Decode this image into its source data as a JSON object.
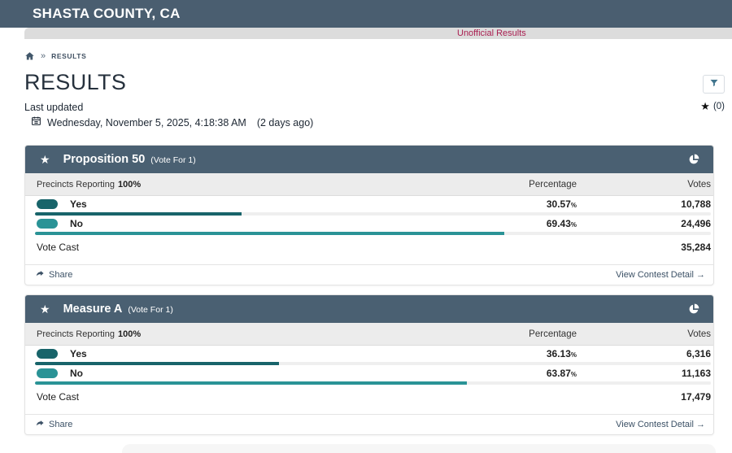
{
  "app": {
    "title": "SHASTA COUNTY, CA",
    "banner": "Unofficial Results"
  },
  "breadcrumb": {
    "separator": "»",
    "current": "RESULTS"
  },
  "page": {
    "title": "RESULTS",
    "last_updated_label": "Last updated",
    "last_updated_value": "Wednesday, November 5, 2025, 4:18:38 AM",
    "last_updated_ago": "(2 days ago)",
    "favorites_star": "★",
    "favorites_count": "(0)"
  },
  "labels": {
    "percentage_header": "Percentage",
    "votes_header": "Votes",
    "precincts_reporting": "Precincts Reporting",
    "vote_cast": "Vote Cast",
    "share": "Share",
    "view_contest_detail": "View Contest Detail →",
    "percent_symbol": "%",
    "header_star": "★"
  },
  "colors": {
    "header_slate": "#4a5e70",
    "card_header_slate": "#4a6072",
    "unofficial_red": "#a91e50",
    "yes_teal": "#18646a",
    "no_teal": "#2a9396",
    "bar_track": "#efefef",
    "link_slate": "#3c5166"
  },
  "contests": [
    {
      "title": "Proposition 50",
      "vote_for": "(Vote For 1)",
      "precincts_reporting": "100%",
      "vote_cast": "35,284",
      "choices": [
        {
          "label": "Yes",
          "percentage": "30.57",
          "bar_pct": 30.57,
          "votes": "10,788",
          "color": "#18646a"
        },
        {
          "label": "No",
          "percentage": "69.43",
          "bar_pct": 69.43,
          "votes": "24,496",
          "color": "#2a9396"
        }
      ]
    },
    {
      "title": "Measure A",
      "vote_for": "(Vote For 1)",
      "precincts_reporting": "100%",
      "vote_cast": "17,479",
      "choices": [
        {
          "label": "Yes",
          "percentage": "36.13",
          "bar_pct": 36.13,
          "votes": "6,316",
          "color": "#18646a"
        },
        {
          "label": "No",
          "percentage": "63.87",
          "bar_pct": 63.87,
          "votes": "11,163",
          "color": "#2a9396"
        }
      ]
    }
  ]
}
